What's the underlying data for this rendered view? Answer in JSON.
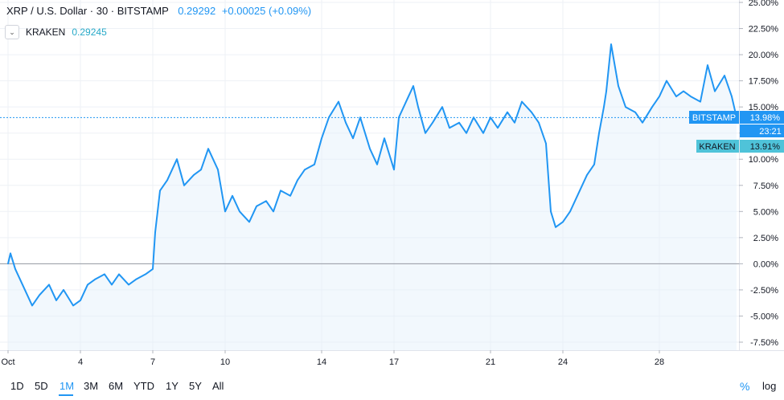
{
  "header": {
    "symbol": "XRP / U.S. Dollar · 30 · BITSTAMP",
    "price": "0.29292",
    "change": "+0.00025 (+0.09%)",
    "compare_symbol": "KRAKEN",
    "compare_price": "0.29245",
    "toggle_icon": "chevron-down-icon"
  },
  "price_tags": {
    "bitstamp_label": "BITSTAMP",
    "bitstamp_value": "13.98%",
    "time_label": "23:21",
    "kraken_label": "KRAKEN",
    "kraken_value": "13.91%"
  },
  "toolbar": {
    "ranges": [
      "1D",
      "5D",
      "1M",
      "3M",
      "6M",
      "YTD",
      "1Y",
      "5Y",
      "All"
    ],
    "active_range": "1M",
    "percent_label": "%",
    "log_label": "log"
  },
  "colors": {
    "bitstamp": "#2196f3",
    "kraken": "#26a9c8",
    "kraken_tag": "#4fc3d9",
    "grid": "#eef1f6",
    "zero_line": "#9598a1",
    "area_fill": "#e3f0fb"
  },
  "chart_data": {
    "type": "line",
    "ylabel": "",
    "xlabel": "",
    "y_unit": "%",
    "ylim": [
      -7.5,
      25
    ],
    "y_ticks": [
      "25.00%",
      "22.50%",
      "20.00%",
      "17.50%",
      "15.00%",
      "12.50%",
      "10.00%",
      "7.50%",
      "5.00%",
      "2.50%",
      "0.00%",
      "-2.50%",
      "-5.00%",
      "-7.50%"
    ],
    "x_ticks": [
      "Oct",
      "4",
      "7",
      "10",
      "14",
      "17",
      "21",
      "24",
      "28"
    ],
    "x_tick_days": [
      1,
      4,
      7,
      10,
      14,
      17,
      21,
      24,
      28
    ],
    "xlim": [
      1,
      31.3
    ],
    "grid": true,
    "series": [
      {
        "name": "BITSTAMP",
        "x": [
          1.0,
          1.1,
          1.3,
          1.6,
          2.0,
          2.3,
          2.7,
          3.0,
          3.3,
          3.7,
          4.0,
          4.3,
          4.6,
          5.0,
          5.3,
          5.6,
          6.0,
          6.3,
          6.7,
          7.0,
          7.1,
          7.3,
          7.6,
          8.0,
          8.3,
          8.7,
          9.0,
          9.3,
          9.7,
          10.0,
          10.3,
          10.6,
          11.0,
          11.3,
          11.7,
          12.0,
          12.3,
          12.7,
          13.0,
          13.3,
          13.7,
          14.0,
          14.3,
          14.7,
          15.0,
          15.3,
          15.6,
          16.0,
          16.3,
          16.6,
          17.0,
          17.2,
          17.5,
          17.8,
          18.0,
          18.3,
          18.6,
          19.0,
          19.3,
          19.7,
          20.0,
          20.3,
          20.7,
          21.0,
          21.3,
          21.7,
          22.0,
          22.3,
          22.7,
          23.0,
          23.3,
          23.5,
          23.7,
          24.0,
          24.3,
          24.7,
          25.0,
          25.3,
          25.5,
          25.7,
          25.8,
          26.0,
          26.3,
          26.6,
          27.0,
          27.3,
          27.7,
          28.0,
          28.3,
          28.7,
          29.0,
          29.3,
          29.7,
          30.0,
          30.3,
          30.7,
          31.0,
          31.2
        ],
        "values": [
          0.0,
          1.0,
          -0.5,
          -2.0,
          -4.0,
          -3.0,
          -2.0,
          -3.5,
          -2.5,
          -4.0,
          -3.5,
          -2.0,
          -1.5,
          -1.0,
          -2.0,
          -1.0,
          -2.0,
          -1.5,
          -1.0,
          -0.5,
          3.0,
          7.0,
          8.0,
          10.0,
          7.5,
          8.5,
          9.0,
          11.0,
          9.0,
          5.0,
          6.5,
          5.0,
          4.0,
          5.5,
          6.0,
          5.0,
          7.0,
          6.5,
          8.0,
          9.0,
          9.5,
          12.0,
          14.0,
          15.5,
          13.5,
          12.0,
          14.0,
          11.0,
          9.5,
          12.0,
          9.0,
          14.0,
          15.5,
          17.0,
          15.0,
          12.5,
          13.5,
          15.0,
          13.0,
          13.5,
          12.5,
          14.0,
          12.5,
          14.0,
          13.0,
          14.5,
          13.5,
          15.5,
          14.5,
          13.5,
          11.5,
          5.0,
          3.5,
          4.0,
          5.0,
          7.0,
          8.5,
          9.5,
          12.5,
          15.0,
          16.5,
          21.0,
          17.0,
          15.0,
          14.5,
          13.5,
          15.0,
          16.0,
          17.5,
          16.0,
          16.5,
          16.0,
          15.5,
          19.0,
          16.5,
          18.0,
          16.0,
          14.0
        ],
        "last_value": 13.98
      },
      {
        "name": "KRAKEN",
        "last_value": 13.91
      }
    ]
  }
}
